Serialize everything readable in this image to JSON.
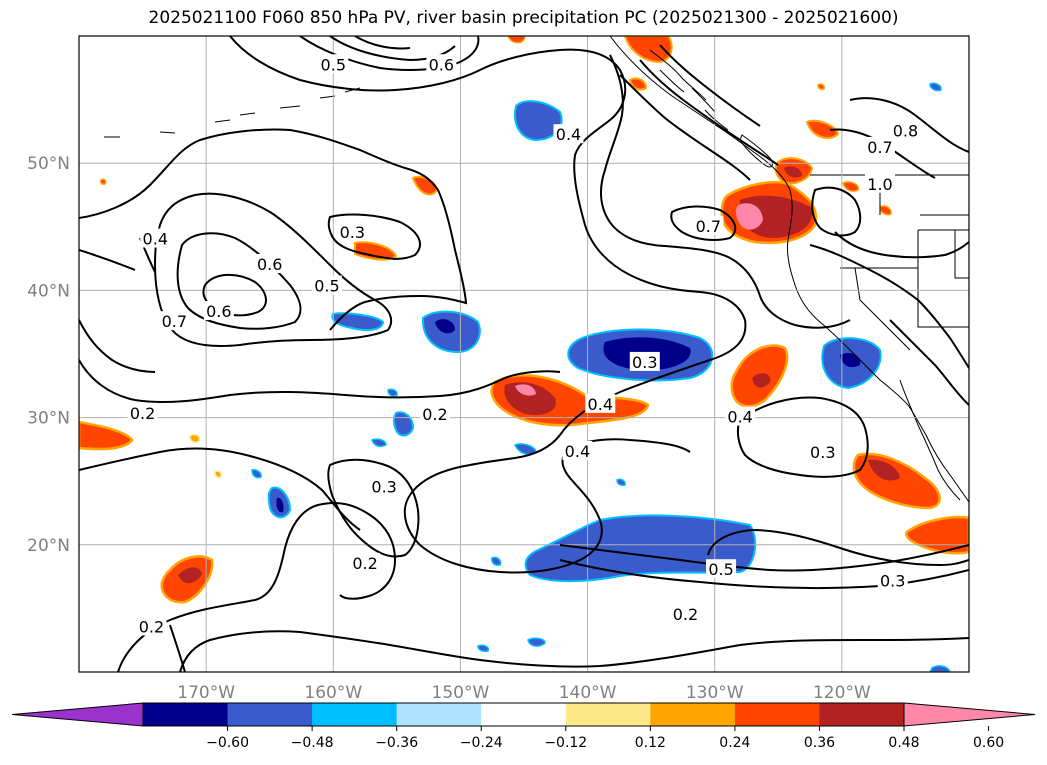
{
  "title": "2025021100 F060 850 hPa PV, river basin precipitation PC (2025021300 - 2025021600)",
  "map": {
    "lon_range": [
      -180,
      -110
    ],
    "lat_range": [
      10,
      60
    ],
    "lat_ticks": [
      {
        "value": 20,
        "label": "20°N"
      },
      {
        "value": 30,
        "label": "30°N"
      },
      {
        "value": 40,
        "label": "40°N"
      },
      {
        "value": 50,
        "label": "50°N"
      }
    ],
    "lon_ticks": [
      {
        "value": -170,
        "label": "170°W"
      },
      {
        "value": -160,
        "label": "160°W"
      },
      {
        "value": -150,
        "label": "150°W"
      },
      {
        "value": -140,
        "label": "140°W"
      },
      {
        "value": -130,
        "label": "130°W"
      },
      {
        "value": -120,
        "label": "120°W"
      }
    ],
    "grid": true
  },
  "colorbar": {
    "ticks": [
      "−0.60",
      "−0.48",
      "−0.36",
      "−0.24",
      "−0.12",
      "0.12",
      "0.24",
      "0.36",
      "0.48",
      "0.60"
    ],
    "colors": [
      "#9a32cd",
      "#00008b",
      "#3a5bcc",
      "#00bfff",
      "#afe3ff",
      "#ffffff",
      "#fde88a",
      "#ffa500",
      "#ff4500",
      "#b22222",
      "#ff88aa"
    ],
    "extend": "both"
  },
  "contour_labels": [
    {
      "text": "0.4",
      "lon": -174,
      "lat": 44
    },
    {
      "text": "0.6",
      "lon": -169,
      "lat": 38.3
    },
    {
      "text": "0.7",
      "lon": -172.5,
      "lat": 37.5
    },
    {
      "text": "0.6",
      "lon": -165,
      "lat": 42
    },
    {
      "text": "0.5",
      "lon": -160.5,
      "lat": 40.3
    },
    {
      "text": "0.3",
      "lon": -158.5,
      "lat": 44.5
    },
    {
      "text": "0.2",
      "lon": -175,
      "lat": 30.3
    },
    {
      "text": "0.2",
      "lon": -152,
      "lat": 30.2
    },
    {
      "text": "0.3",
      "lon": -156,
      "lat": 24.5
    },
    {
      "text": "0.2",
      "lon": -157.5,
      "lat": 18.5
    },
    {
      "text": "0.2",
      "lon": -174.3,
      "lat": 13.5
    },
    {
      "text": "0.5",
      "lon": -160,
      "lat": 57.7
    },
    {
      "text": "0.6",
      "lon": -151.5,
      "lat": 57.7
    },
    {
      "text": "0.4",
      "lon": -141.5,
      "lat": 52.2
    },
    {
      "text": "0.3",
      "lon": -135.5,
      "lat": 34.3
    },
    {
      "text": "0.4",
      "lon": -139,
      "lat": 31
    },
    {
      "text": "0.4",
      "lon": -140.8,
      "lat": 27.3
    },
    {
      "text": "0.4",
      "lon": -128,
      "lat": 30
    },
    {
      "text": "0.7",
      "lon": -130.5,
      "lat": 45
    },
    {
      "text": "0.3",
      "lon": -121.5,
      "lat": 27.2
    },
    {
      "text": "0.5",
      "lon": -129.5,
      "lat": 18
    },
    {
      "text": "0.3",
      "lon": -116,
      "lat": 17.1
    },
    {
      "text": "0.2",
      "lon": -132.3,
      "lat": 14.5
    },
    {
      "text": "0.8",
      "lon": -115,
      "lat": 52.5
    },
    {
      "text": "0.7",
      "lon": -117,
      "lat": 51.2
    },
    {
      "text": "1.0",
      "lon": -117,
      "lat": 48.3
    }
  ]
}
